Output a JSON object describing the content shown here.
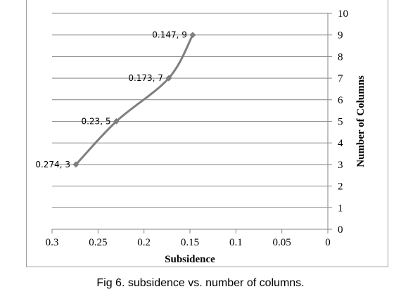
{
  "chart_data": {
    "type": "line",
    "title": "",
    "xlabel": "Subsidence",
    "ylabel": "Number  of Columns",
    "xlim": [
      0.3,
      0
    ],
    "ylim": [
      0,
      10
    ],
    "x_reversed": true,
    "y_axis_side": "right",
    "x_ticks": [
      0.3,
      0.25,
      0.2,
      0.15,
      0.1,
      0.05,
      0
    ],
    "x_tick_labels": [
      "0.3",
      "0.25",
      "0.2",
      "0.15",
      "0.1",
      "0.05",
      "0"
    ],
    "y_ticks": [
      0,
      1,
      2,
      3,
      4,
      5,
      6,
      7,
      8,
      9,
      10
    ],
    "y_tick_labels": [
      "0",
      "1",
      "2",
      "3",
      "4",
      "5",
      "6",
      "7",
      "8",
      "9",
      "10"
    ],
    "grid": "horizontal",
    "series": [
      {
        "color": "#7f7f7f",
        "marker": "diamond",
        "smooth": true,
        "points": [
          {
            "x": 0.274,
            "y": 3,
            "label": "0.274, 3"
          },
          {
            "x": 0.23,
            "y": 5,
            "label": "0.23, 5"
          },
          {
            "x": 0.173,
            "y": 7,
            "label": "0.173, 7"
          },
          {
            "x": 0.147,
            "y": 9,
            "label": "0.147, 9"
          }
        ]
      }
    ]
  },
  "caption": "Fig 6. subsidence vs. number of columns."
}
